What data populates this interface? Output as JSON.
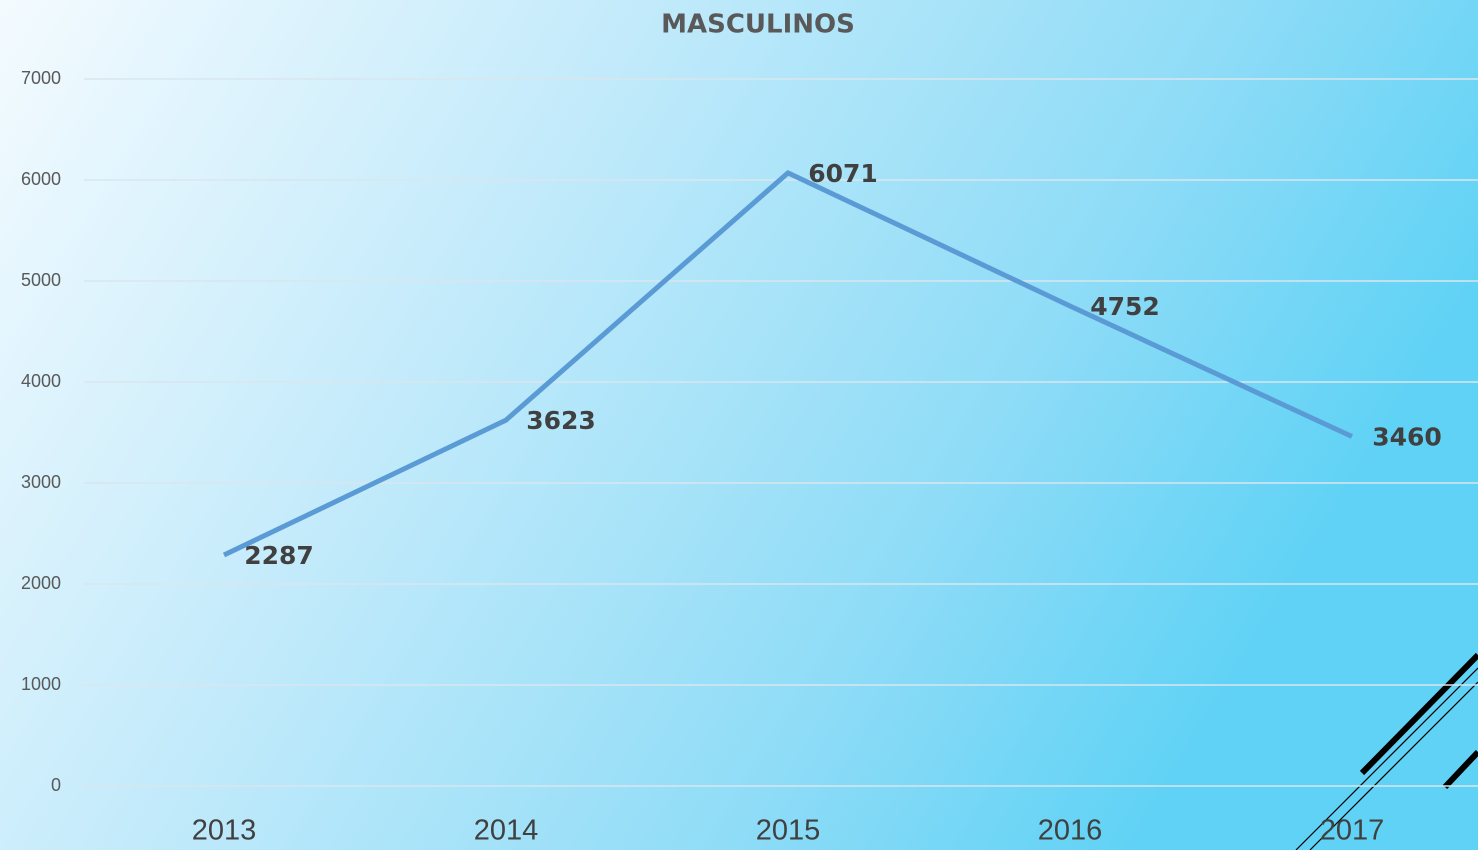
{
  "chart_data": {
    "type": "line",
    "title": "MASCULINOS",
    "categories": [
      "2013",
      "2014",
      "2015",
      "2016",
      "2017"
    ],
    "series": [
      {
        "name": "MASCULINOS",
        "color": "#5b9bd5",
        "values": [
          2287,
          3623,
          6071,
          4752,
          3460
        ]
      }
    ],
    "ylim": [
      0,
      7000
    ],
    "yticks": [
      0,
      1000,
      2000,
      3000,
      4000,
      5000,
      6000,
      7000
    ],
    "grid": true
  }
}
